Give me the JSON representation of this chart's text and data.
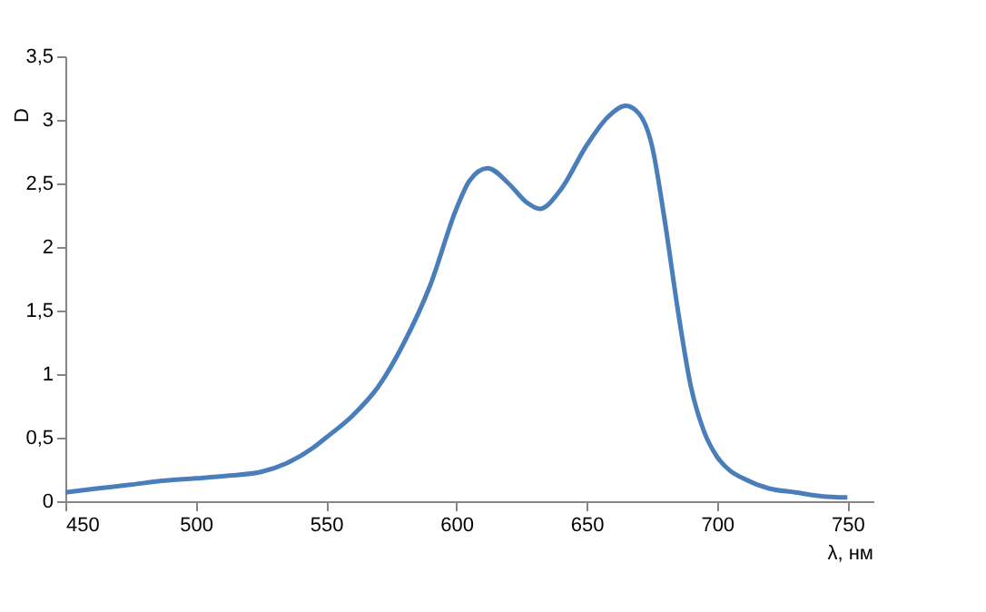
{
  "chart_data": {
    "type": "line",
    "xlabel": "λ, нм",
    "ylabel": "D",
    "x": [
      450,
      462,
      475,
      487,
      500,
      512,
      525,
      535,
      545,
      550,
      560,
      570,
      580,
      590,
      600,
      605,
      612,
      620,
      627,
      632,
      640,
      650,
      658,
      665,
      670,
      675,
      680,
      685,
      690,
      695,
      700,
      705,
      710,
      720,
      730,
      740,
      750
    ],
    "series": [
      {
        "color": "#4a7ebb",
        "values": [
          0.07,
          0.1,
          0.13,
          0.16,
          0.18,
          0.2,
          0.23,
          0.3,
          0.42,
          0.5,
          0.67,
          0.9,
          1.25,
          1.7,
          2.3,
          2.52,
          2.62,
          2.5,
          2.35,
          2.3,
          2.45,
          2.8,
          3.02,
          3.11,
          3.05,
          2.8,
          2.2,
          1.5,
          0.9,
          0.55,
          0.35,
          0.24,
          0.18,
          0.1,
          0.07,
          0.04,
          0.03
        ]
      }
    ],
    "xlim": [
      450,
      760
    ],
    "xticks": [
      450,
      500,
      550,
      600,
      650,
      700,
      750
    ],
    "ylim": [
      0,
      3.5
    ],
    "yticks": [
      {
        "value": 0,
        "label": "0"
      },
      {
        "value": 0.5,
        "label": "0,5"
      },
      {
        "value": 1,
        "label": "1"
      },
      {
        "value": 1.5,
        "label": "1,5"
      },
      {
        "value": 2,
        "label": "2"
      },
      {
        "value": 2.5,
        "label": "2,5"
      },
      {
        "value": 3,
        "label": "3"
      },
      {
        "value": 3.5,
        "label": "3,5"
      }
    ],
    "grid": false,
    "marker": "none",
    "line_style": "solid"
  }
}
